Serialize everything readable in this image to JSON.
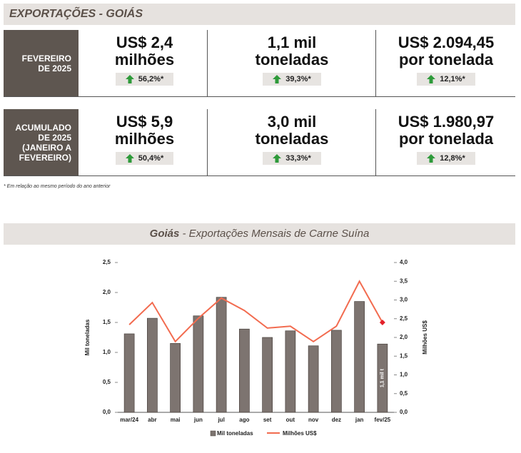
{
  "header": {
    "title": "EXPORTAÇÕES - GOIÁS"
  },
  "stats": [
    {
      "label": "FEVEREIRO DE 2025",
      "cells": [
        {
          "value": "US$ 2,4",
          "unit": "milhões",
          "change": "56,2%*"
        },
        {
          "value": "1,1 mil",
          "unit": "toneladas",
          "change": "39,3%*"
        },
        {
          "value": "US$ 2.094,45",
          "unit": "por tonelada",
          "change": "12,1%*"
        }
      ]
    },
    {
      "label": "ACUMULADO DE 2025 (JANEIRO A FEVEREIRO)",
      "cells": [
        {
          "value": "US$ 5,9",
          "unit": "milhões",
          "change": "50,4%*"
        },
        {
          "value": "3,0 mil",
          "unit": "toneladas",
          "change": "33,3%*"
        },
        {
          "value": "US$ 1.980,97",
          "unit": "por tonelada",
          "change": "12,8%*"
        }
      ]
    }
  ],
  "footnote": "* Em relação ao mesmo período do ano anterior",
  "chart_data": {
    "type": "bar",
    "title": "Goiás",
    "subtitle": "- Exportações Mensais de Carne Suína",
    "ylabel": "Mil toneladas",
    "y2label": "Milhões US$",
    "categories": [
      "mar/24",
      "abr",
      "mai",
      "jun",
      "jul",
      "ago",
      "set",
      "out",
      "nov",
      "dez",
      "jan",
      "fev/25"
    ],
    "series": [
      {
        "name": "Mil toneladas",
        "type": "bar",
        "color": "#7d7470",
        "values": [
          1.31,
          1.57,
          1.15,
          1.61,
          1.92,
          1.39,
          1.25,
          1.36,
          1.11,
          1.37,
          1.85,
          1.14
        ],
        "value_labels": [
          null,
          null,
          null,
          null,
          null,
          null,
          null,
          null,
          null,
          null,
          null,
          "1,1 mil t"
        ]
      },
      {
        "name": "Milhões US$",
        "type": "line",
        "axis": "y2",
        "color": "#f26b4f",
        "values": [
          2.34,
          2.93,
          1.89,
          2.51,
          3.05,
          2.72,
          2.25,
          2.3,
          1.89,
          2.3,
          3.5,
          2.4
        ]
      }
    ],
    "ylim": [
      0,
      2.5
    ],
    "yticks": [
      {
        "value": 0,
        "label": "0,0"
      },
      {
        "value": 0.5,
        "label": "0,5"
      },
      {
        "value": 1,
        "label": "1,0"
      },
      {
        "value": 1.5,
        "label": "1,5"
      },
      {
        "value": 2,
        "label": "2,0"
      },
      {
        "value": 2.5,
        "label": "2,5"
      }
    ],
    "y2lim": [
      0,
      4
    ],
    "y2ticks": [
      {
        "value": 0,
        "label": "0,0"
      },
      {
        "value": 0.5,
        "label": "0,5"
      },
      {
        "value": 1,
        "label": "1,0"
      },
      {
        "value": 1.5,
        "label": "1,5"
      },
      {
        "value": 2,
        "label": "2,0"
      },
      {
        "value": 2.5,
        "label": "2,5"
      },
      {
        "value": 3,
        "label": "3,0"
      },
      {
        "value": 3.5,
        "label": "3,5"
      },
      {
        "value": 4,
        "label": "4,0"
      }
    ],
    "legend": "bottom"
  }
}
